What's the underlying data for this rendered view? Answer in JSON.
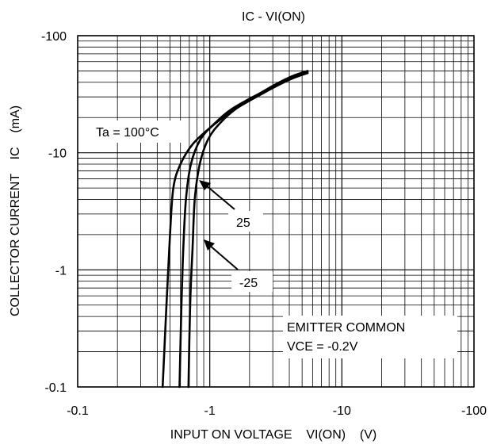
{
  "chart_data": {
    "type": "line",
    "title": "IC - VI(ON)",
    "xlabel": "INPUT ON VOLTAGE    VI(ON)    (V)",
    "ylabel": "COLLECTOR CURRENT    IC    (mA)",
    "xscale": "log",
    "yscale": "log",
    "xlim": [
      -0.1,
      -100
    ],
    "ylim": [
      -0.1,
      -100
    ],
    "x_ticks": [
      "-0.1",
      "-1",
      "-10",
      "-100"
    ],
    "y_ticks": [
      "-100",
      "-10",
      "-1",
      "-0.1"
    ],
    "grid": true,
    "series": [
      {
        "name": "Ta = 100°C",
        "points": [
          [
            -0.44,
            -0.1
          ],
          [
            -0.47,
            -0.5
          ],
          [
            -0.5,
            -2
          ],
          [
            -0.53,
            -5
          ],
          [
            -0.6,
            -8
          ],
          [
            -0.75,
            -12
          ],
          [
            -1.05,
            -17
          ],
          [
            -1.5,
            -23
          ],
          [
            -2.5,
            -32
          ],
          [
            -4,
            -42
          ],
          [
            -5.5,
            -48
          ]
        ]
      },
      {
        "name": "25",
        "points": [
          [
            -0.59,
            -0.1
          ],
          [
            -0.61,
            -0.5
          ],
          [
            -0.63,
            -1.5
          ],
          [
            -0.66,
            -4
          ],
          [
            -0.72,
            -8
          ],
          [
            -0.85,
            -13
          ],
          [
            -1.1,
            -18
          ],
          [
            -1.5,
            -24
          ],
          [
            -2.5,
            -33
          ],
          [
            -4,
            -43
          ],
          [
            -5.5,
            -49
          ]
        ]
      },
      {
        "name": "-25",
        "points": [
          [
            -0.69,
            -0.1
          ],
          [
            -0.71,
            -0.5
          ],
          [
            -0.74,
            -1.5
          ],
          [
            -0.77,
            -4
          ],
          [
            -0.84,
            -8
          ],
          [
            -0.97,
            -13
          ],
          [
            -1.2,
            -18
          ],
          [
            -1.6,
            -24
          ],
          [
            -2.6,
            -34
          ],
          [
            -4,
            -44
          ],
          [
            -5.5,
            -50
          ]
        ]
      }
    ],
    "annotations": [
      "Ta = 100°C",
      "25",
      "-25",
      "EMITTER COMMON",
      "VCE = -0.2V"
    ]
  }
}
